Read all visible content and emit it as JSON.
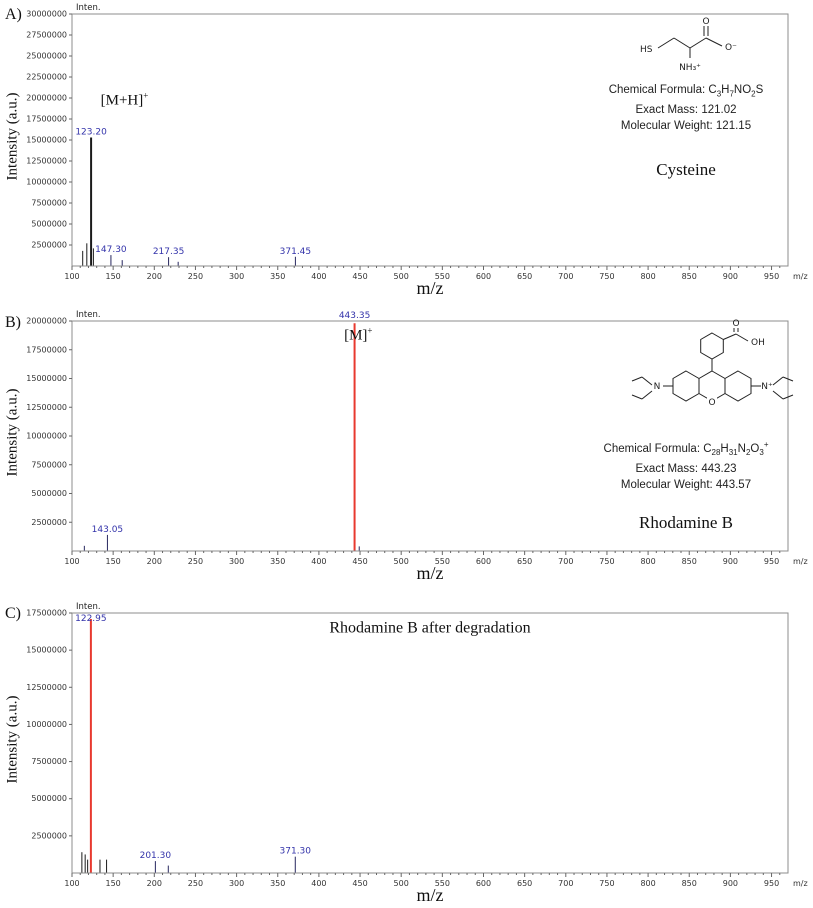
{
  "colors": {
    "peak_label": "#3333aa",
    "red_peak": "#e8392f",
    "black_peak": "#1a1a1a",
    "default_peak": "#26265e",
    "axis": "#8c8c8c"
  },
  "chart_data": [
    {
      "id": "A",
      "type": "stick",
      "panel_letter": "A)",
      "ylabel": "Intensity (a.u.)",
      "xlabel": "m/z",
      "y_units_label": "Inten.",
      "x_end_label": "m/z",
      "xlim": [
        100,
        970
      ],
      "ylim": [
        0,
        30000000
      ],
      "ytick_step": 2500000,
      "xtick_step": 50,
      "xtick_max": 950,
      "peaks": [
        {
          "mz": 113,
          "intensity": 1800000,
          "color": "#1a1a1a"
        },
        {
          "mz": 118,
          "intensity": 2700000,
          "color": "#1a1a1a"
        },
        {
          "mz": 123.2,
          "intensity": 15300000,
          "label": "123.20",
          "color": "#1a1a1a",
          "width": 2
        },
        {
          "mz": 126,
          "intensity": 2100000,
          "color": "#1a1a1a"
        },
        {
          "mz": 147.3,
          "intensity": 1300000,
          "label": "147.30"
        },
        {
          "mz": 161,
          "intensity": 700000
        },
        {
          "mz": 217.35,
          "intensity": 1050000,
          "label": "217.35"
        },
        {
          "mz": 229,
          "intensity": 500000
        },
        {
          "mz": 371.45,
          "intensity": 1100000,
          "label": "371.45"
        }
      ],
      "annotation": {
        "segments": [
          {
            "t": "[M+H]"
          },
          {
            "t": "+",
            "sup": true
          }
        ],
        "fx": 0.04,
        "fy": 0.36,
        "anchor": "start",
        "size": 15
      },
      "info_lines": [
        [
          {
            "t": "Chemical Formula: C"
          },
          {
            "t": "3",
            "sub": true
          },
          {
            "t": "H"
          },
          {
            "t": "7",
            "sub": true
          },
          {
            "t": "NO"
          },
          {
            "t": "2",
            "sub": true
          },
          {
            "t": "S"
          }
        ],
        [
          {
            "t": "Exact Mass: 121.02"
          }
        ],
        [
          {
            "t": "Molecular Weight: 121.15"
          }
        ]
      ],
      "compound": "Cysteine",
      "structure": {
        "hs": "HS",
        "carbonyl_o": "O",
        "carboxylate_o": "O⁻",
        "ammonium": "NH₃⁺"
      }
    },
    {
      "id": "B",
      "type": "stick",
      "panel_letter": "B)",
      "ylabel": "Intensity (a.u.)",
      "xlabel": "m/z",
      "y_units_label": "Inten.",
      "x_end_label": "m/z",
      "xlim": [
        100,
        970
      ],
      "ylim": [
        0,
        20000000
      ],
      "ytick_step": 2500000,
      "xtick_step": 50,
      "xtick_max": 950,
      "peaks": [
        {
          "mz": 115,
          "intensity": 450000
        },
        {
          "mz": 143.05,
          "intensity": 1400000,
          "label": "143.05"
        },
        {
          "mz": 443.35,
          "intensity": 19800000,
          "label": "443.35",
          "color": "#e8392f",
          "width": 2
        },
        {
          "mz": 449,
          "intensity": 400000
        }
      ],
      "annotation": {
        "segments": [
          {
            "t": "[M]"
          },
          {
            "t": "+",
            "sup": true
          }
        ],
        "fx": 0.38,
        "fy": 0.08,
        "anchor": "start",
        "size": 15
      },
      "info_lines": [
        [
          {
            "t": "Chemical Formula: C"
          },
          {
            "t": "28",
            "sub": true
          },
          {
            "t": "H"
          },
          {
            "t": "31",
            "sub": true
          },
          {
            "t": "N"
          },
          {
            "t": "2",
            "sub": true
          },
          {
            "t": "O"
          },
          {
            "t": "3",
            "sub": true
          },
          {
            "t": "+",
            "sup": true
          }
        ],
        [
          {
            "t": "Exact Mass: 443.23"
          }
        ],
        [
          {
            "t": "Molecular Weight: 443.57"
          }
        ]
      ],
      "compound": "Rhodamine B",
      "structure": {
        "ring_o": "O",
        "n_left": "N",
        "n_right": "N⁺",
        "cooh_o": "O",
        "cooh_oh": "OH"
      }
    },
    {
      "id": "C",
      "type": "stick",
      "panel_letter": "C)",
      "ylabel": "Intensity (a.u.)",
      "xlabel": "m/z",
      "y_units_label": "Inten.",
      "x_end_label": "m/z",
      "xlim": [
        100,
        970
      ],
      "ylim": [
        0,
        17500000
      ],
      "ytick_step": 2500000,
      "xtick_step": 50,
      "xtick_max": 950,
      "peaks": [
        {
          "mz": 112,
          "intensity": 1400000,
          "color": "#1a1a1a"
        },
        {
          "mz": 116,
          "intensity": 1250000,
          "color": "#1a1a1a"
        },
        {
          "mz": 119,
          "intensity": 900000,
          "color": "#1a1a1a"
        },
        {
          "mz": 122.95,
          "intensity": 17100000,
          "label": "122.95",
          "color": "#e8392f",
          "width": 2
        },
        {
          "mz": 134,
          "intensity": 900000,
          "color": "#1a1a1a"
        },
        {
          "mz": 142,
          "intensity": 900000,
          "color": "#1a1a1a"
        },
        {
          "mz": 201.3,
          "intensity": 800000,
          "label": "201.30"
        },
        {
          "mz": 217,
          "intensity": 500000
        },
        {
          "mz": 371.3,
          "intensity": 1100000,
          "label": "371.30"
        }
      ],
      "annotation": {
        "segments": [
          {
            "t": "Rhodamine B after degradation"
          }
        ],
        "fx": 0.5,
        "fy": 0.075,
        "anchor": "middle",
        "size": 16
      },
      "info_lines": [],
      "compound": ""
    }
  ]
}
